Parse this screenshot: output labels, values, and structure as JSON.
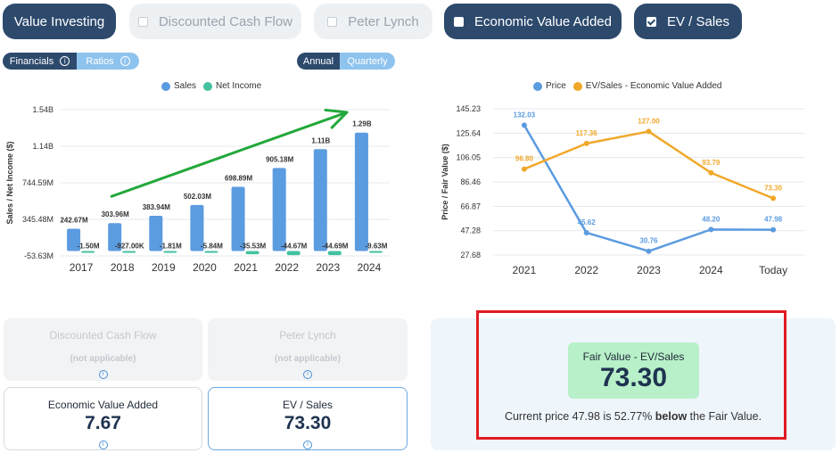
{
  "tabs": [
    {
      "label": "Value Investing",
      "active": true,
      "checkbox": "none"
    },
    {
      "label": "Discounted Cash Flow",
      "active": false,
      "checkbox": "unchecked"
    },
    {
      "label": "Peter Lynch",
      "active": false,
      "checkbox": "unchecked"
    },
    {
      "label": "Economic Value Added",
      "active": true,
      "checkbox": "unchecked"
    },
    {
      "label": "EV / Sales",
      "active": true,
      "checkbox": "checked"
    }
  ],
  "statement_toggle": {
    "financials": "Financials",
    "ratios": "Ratios",
    "selected": "Financials"
  },
  "period_toggle": {
    "annual": "Annual",
    "quarterly": "Quarterly",
    "selected": "Annual"
  },
  "left_legend": {
    "sales": "Sales",
    "net_income": "Net Income"
  },
  "right_legend": {
    "price": "Price",
    "evs": "EV/Sales - Economic Value Added"
  },
  "colors": {
    "sales": "#5b9be0",
    "net_income": "#44c2a0",
    "price": "#5b9be0",
    "evs": "#f0a82a",
    "accent_dark": "#2d4a6d",
    "highlight_red": "#e11b22",
    "arrow_green": "#22a83a"
  },
  "chart_data": [
    {
      "type": "bar",
      "title": "",
      "ylabel": "Sales / Net Income ($)",
      "xlabel": "",
      "categories": [
        "2017",
        "2018",
        "2019",
        "2020",
        "2021",
        "2022",
        "2023",
        "2024"
      ],
      "y_ticks": [
        "1.54B",
        "1.14B",
        "744.59M",
        "345.48M",
        "-53.63M"
      ],
      "ylim": [
        -53.63,
        1540
      ],
      "series": [
        {
          "name": "Sales",
          "values": [
            242.67,
            303.96,
            383.94,
            502.03,
            698.89,
            905.18,
            1110,
            1290
          ],
          "labels": [
            "242.67M",
            "303.96M",
            "383.94M",
            "502.03M",
            "698.89M",
            "905.18M",
            "1.11B",
            "1.29B"
          ]
        },
        {
          "name": "Net Income",
          "values": [
            -1.5,
            -0.927,
            -1.81,
            -5.84,
            -35.53,
            -44.67,
            -44.69,
            -9.63
          ],
          "labels": [
            "-1.50M",
            "-927.00K",
            "-1.81M",
            "-5.84M",
            "-35.53M",
            "-44.67M",
            "-44.69M",
            "-9.63M"
          ]
        }
      ],
      "annotation": "green upward trend arrow"
    },
    {
      "type": "line",
      "title": "",
      "ylabel": "Price / Fair Value ($)",
      "xlabel": "",
      "categories": [
        "2021",
        "2022",
        "2023",
        "2024",
        "Today"
      ],
      "y_ticks": [
        "145.23",
        "125.64",
        "106.05",
        "86.46",
        "66.87",
        "47.28",
        "27.68"
      ],
      "ylim": [
        27.68,
        145.23
      ],
      "series": [
        {
          "name": "Price",
          "values": [
            132.03,
            45.62,
            30.76,
            48.2,
            47.98
          ],
          "labels": [
            "132.03",
            "45.62",
            "30.76",
            "48.20",
            "47.98"
          ]
        },
        {
          "name": "EV/Sales - Economic Value Added",
          "values": [
            96.8,
            117.36,
            127.0,
            93.79,
            73.3
          ],
          "labels": [
            "96.80",
            "117.36",
            "127.00",
            "93.79",
            "73.30"
          ]
        }
      ]
    }
  ],
  "cards": [
    {
      "title": "Discounted Cash Flow",
      "value": "(not applicable)",
      "state": "disabled"
    },
    {
      "title": "Peter Lynch",
      "value": "(not applicable)",
      "state": "disabled"
    },
    {
      "title": "Economic Value Added",
      "value": "7.67",
      "state": "normal"
    },
    {
      "title": "EV / Sales",
      "value": "73.30",
      "state": "selected"
    }
  ],
  "fair_value": {
    "label": "Fair Value - EV/Sales",
    "value": "73.30",
    "prefix": "Current price 47.98 is 52.77% ",
    "emph": "below",
    "suffix": " the Fair Value."
  }
}
